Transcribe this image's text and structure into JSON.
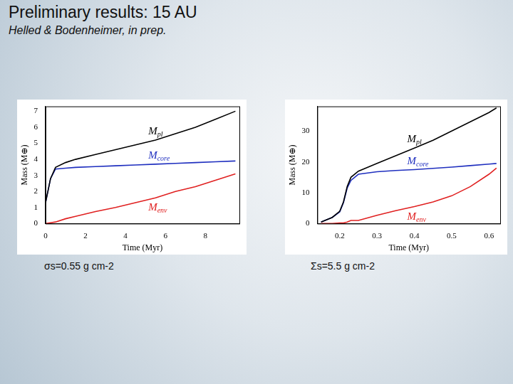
{
  "header": {
    "title": "Preliminary results: 15 AU",
    "subtitle": "Helled & Bodenheimer, in prep."
  },
  "chart_data": [
    {
      "type": "line",
      "subtitle": "σs=0.55 g cm-2",
      "x_label": "Time (Myr)",
      "y_label": "Mass (M⊕)",
      "x": [
        0,
        0.25,
        0.5,
        1,
        1.5,
        2.5,
        3.5,
        4.5,
        5.5,
        6.5,
        7.5,
        8.5,
        9.5
      ],
      "series": [
        {
          "name": "Mpl",
          "color": "#000000",
          "values": [
            1.3,
            2.8,
            3.5,
            3.8,
            4.0,
            4.3,
            4.6,
            4.9,
            5.2,
            5.6,
            6.0,
            6.5,
            7.0
          ]
        },
        {
          "name": "Mcore",
          "color": "#1f2fbf",
          "values": [
            1.3,
            2.8,
            3.4,
            3.45,
            3.5,
            3.55,
            3.6,
            3.65,
            3.7,
            3.75,
            3.8,
            3.85,
            3.9
          ]
        },
        {
          "name": "Menv",
          "color": "#e02020",
          "values": [
            0,
            0.05,
            0.1,
            0.3,
            0.45,
            0.75,
            1.0,
            1.3,
            1.6,
            2.0,
            2.3,
            2.7,
            3.1
          ]
        }
      ],
      "xlim": [
        0,
        9.7
      ],
      "xticks": [
        0,
        2,
        4,
        6,
        8
      ],
      "ylim": [
        0,
        7.3
      ],
      "yticks": [
        0,
        1,
        2,
        3,
        4,
        5,
        6,
        7
      ],
      "grid": false
    },
    {
      "type": "line",
      "subtitle": "Σs=5.5 g cm-2",
      "x_label": "Time (Myr)",
      "y_label": "Mass (M⊕)",
      "x": [
        0.15,
        0.18,
        0.2,
        0.21,
        0.22,
        0.23,
        0.25,
        0.3,
        0.35,
        0.4,
        0.45,
        0.5,
        0.55,
        0.6,
        0.62
      ],
      "series": [
        {
          "name": "Mpl",
          "color": "#000000",
          "values": [
            0.5,
            2,
            4,
            7,
            12,
            15,
            17,
            19.5,
            22,
            24.5,
            27,
            30,
            33,
            36,
            37.5
          ]
        },
        {
          "name": "Mcore",
          "color": "#1f2fbf",
          "values": [
            0.5,
            2,
            3.8,
            6.8,
            11.5,
            14,
            16,
            16.8,
            17.2,
            17.5,
            17.9,
            18.3,
            18.8,
            19.3,
            19.5
          ]
        },
        {
          "name": "Menv",
          "color": "#e02020",
          "values": [
            0,
            0,
            0.2,
            0.2,
            0.5,
            1,
            1,
            2.7,
            4.2,
            5.5,
            7,
            9,
            12,
            16,
            18
          ]
        }
      ],
      "xlim": [
        0.14,
        0.63
      ],
      "xticks": [
        0.2,
        0.3,
        0.4,
        0.5,
        0.6
      ],
      "ylim": [
        0,
        38
      ],
      "yticks": [
        0,
        10,
        20,
        30
      ],
      "grid": false
    }
  ]
}
